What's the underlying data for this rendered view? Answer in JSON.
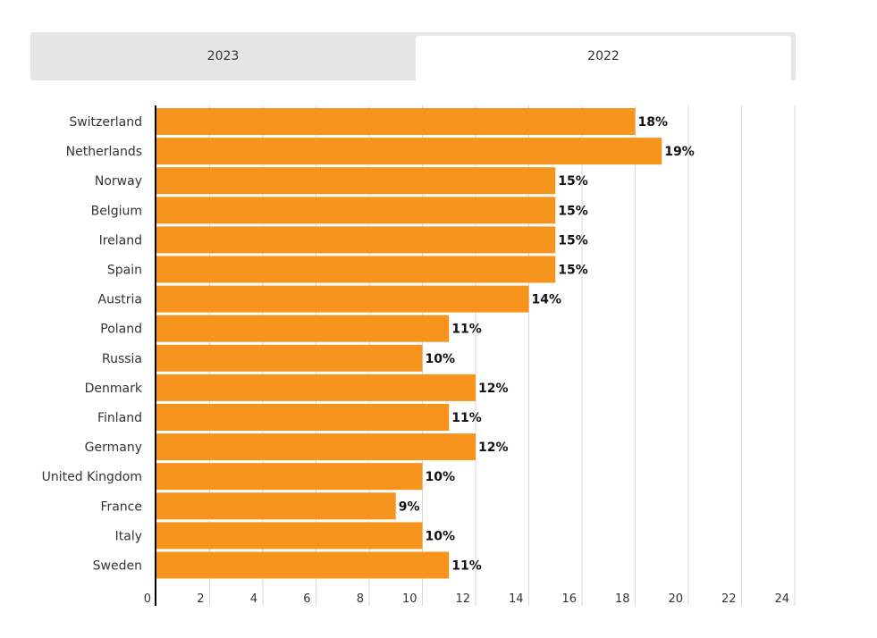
{
  "tabs": [
    {
      "label": "2023",
      "active": false
    },
    {
      "label": "2022",
      "active": true
    }
  ],
  "colors": {
    "bar": "#f7941d",
    "grid": "#d9d9d9",
    "axis": "#000000"
  },
  "chart_data": {
    "type": "bar",
    "orientation": "horizontal",
    "categories": [
      "Switzerland",
      "Netherlands",
      "Norway",
      "Belgium",
      "Ireland",
      "Spain",
      "Austria",
      "Poland",
      "Russia",
      "Denmark",
      "Finland",
      "Germany",
      "United Kingdom",
      "France",
      "Italy",
      "Sweden"
    ],
    "values": [
      18,
      19,
      15,
      15,
      15,
      15,
      14,
      11,
      10,
      12,
      11,
      12,
      10,
      9,
      10,
      11
    ],
    "data_labels": [
      "18%",
      "19%",
      "15%",
      "15%",
      "15%",
      "15%",
      "14%",
      "11%",
      "10%",
      "12%",
      "11%",
      "12%",
      "10%",
      "9%",
      "10%",
      "11%"
    ],
    "xlim": [
      0,
      24
    ],
    "xticks": [
      0,
      2,
      4,
      6,
      8,
      10,
      12,
      14,
      16,
      18,
      20,
      22,
      24
    ],
    "grid": true,
    "legend": "none"
  }
}
